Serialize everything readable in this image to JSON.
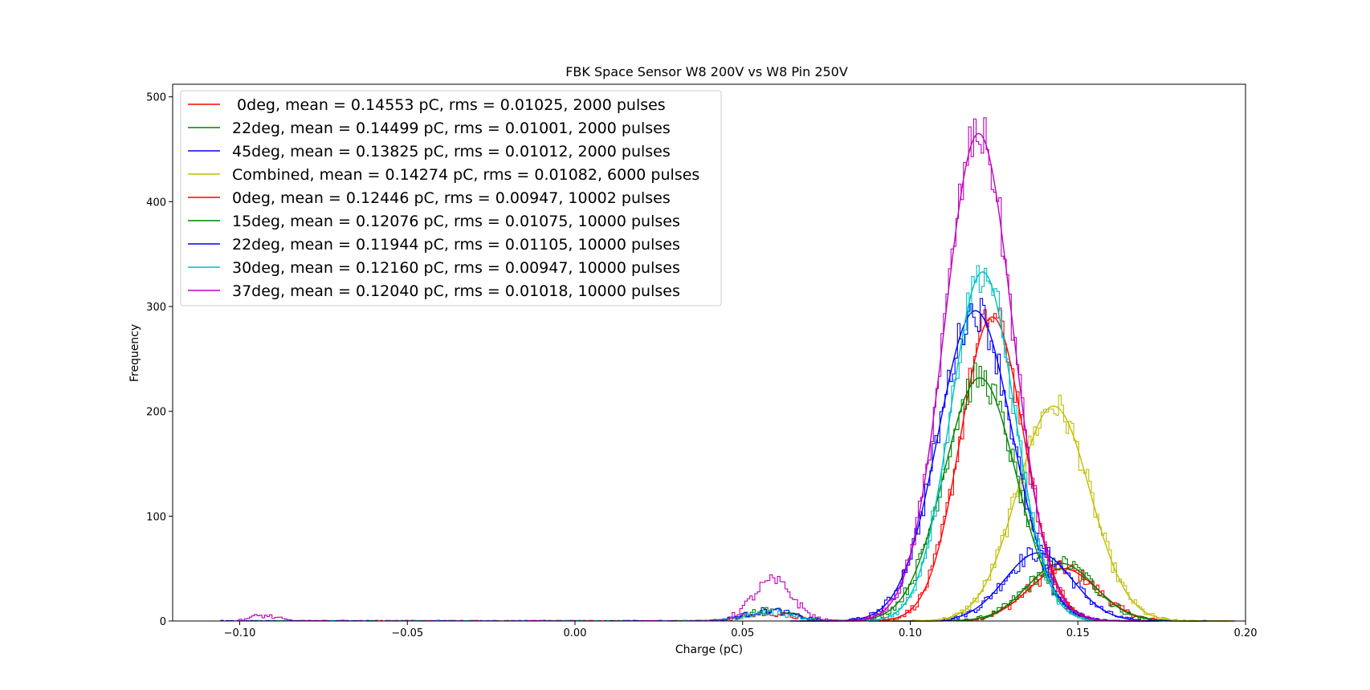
{
  "chart_data": {
    "type": "histogram-with-gaussian-fits",
    "title": "FBK Space Sensor W8 200V vs W8 Pin 250V",
    "xlabel": "Charge (pC)",
    "ylabel": "Frequency",
    "xlim": [
      -0.12,
      0.2
    ],
    "ylim": [
      0,
      512
    ],
    "xticks": [
      -0.1,
      -0.05,
      0.0,
      0.05,
      0.1,
      0.15,
      0.2
    ],
    "xtick_labels": [
      "−0.10",
      "−0.05",
      "0.00",
      "0.05",
      "0.10",
      "0.15",
      "0.20"
    ],
    "yticks": [
      0,
      100,
      200,
      300,
      400,
      500
    ],
    "ytick_labels": [
      "0",
      "100",
      "200",
      "300",
      "400",
      "500"
    ],
    "grid": false,
    "legend_position": "upper-left",
    "series": [
      {
        "name": " 0deg, mean = 0.14553 pC, rms = 0.01025, 2000 pulses",
        "color": "#ff0000",
        "mean": 0.14553,
        "rms": 0.01025,
        "peak": 50
      },
      {
        "name": "22deg, mean = 0.14499 pC, rms = 0.01001, 2000 pulses",
        "color": "#008000",
        "mean": 0.14499,
        "rms": 0.01001,
        "peak": 55
      },
      {
        "name": "45deg, mean = 0.13825 pC, rms = 0.01012, 2000 pulses",
        "color": "#0000ff",
        "mean": 0.13825,
        "rms": 0.01012,
        "peak": 65
      },
      {
        "name": "Combined, mean = 0.14274 pC, rms = 0.01082, 6000 pulses",
        "color": "#bfbf00",
        "mean": 0.14274,
        "rms": 0.01082,
        "peak": 205
      },
      {
        "name": "0deg, mean = 0.12446 pC, rms = 0.00947, 10002 pulses",
        "color": "#ff0000",
        "mean": 0.12446,
        "rms": 0.00947,
        "peak": 290
      },
      {
        "name": "15deg, mean = 0.12076 pC, rms = 0.01075, 10000 pulses",
        "color": "#008000",
        "mean": 0.12076,
        "rms": 0.01075,
        "peak": 232
      },
      {
        "name": "22deg, mean = 0.11944 pC, rms = 0.01105, 10000 pulses",
        "color": "#0000ff",
        "mean": 0.11944,
        "rms": 0.01105,
        "peak": 296
      },
      {
        "name": "30deg, mean = 0.12160 pC, rms = 0.00947, 10000 pulses",
        "color": "#00bfbf",
        "mean": 0.1216,
        "rms": 0.00947,
        "peak": 333
      },
      {
        "name": "37deg, mean = 0.12040 pC, rms = 0.01018, 10000 pulses",
        "color": "#bf00bf",
        "mean": 0.1204,
        "rms": 0.01018,
        "peak": 465
      }
    ],
    "secondary_bumps": [
      {
        "series_index": 8,
        "center": 0.059,
        "sigma": 0.006,
        "peak": 38
      },
      {
        "series_index": 8,
        "center": -0.093,
        "sigma": 0.004,
        "peak": 5
      },
      {
        "series_index": 5,
        "center": 0.058,
        "sigma": 0.007,
        "peak": 10
      },
      {
        "series_index": 6,
        "center": 0.058,
        "sigma": 0.007,
        "peak": 10
      },
      {
        "series_index": 7,
        "center": 0.058,
        "sigma": 0.007,
        "peak": 8
      },
      {
        "series_index": 4,
        "center": 0.058,
        "sigma": 0.007,
        "peak": 7
      }
    ]
  }
}
